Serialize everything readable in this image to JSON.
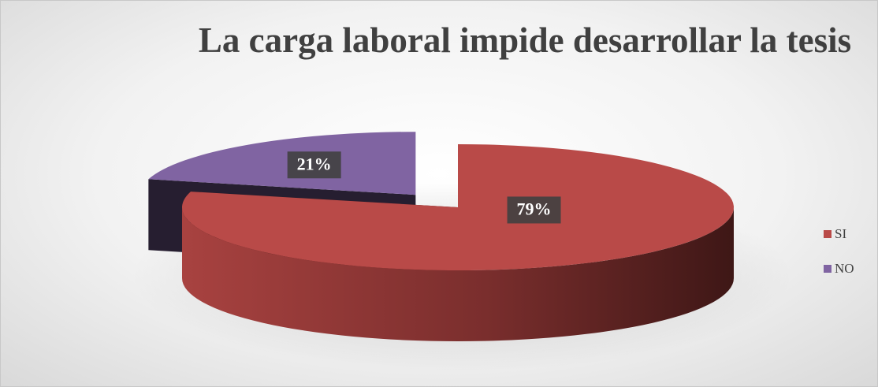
{
  "chart_data": {
    "type": "pie",
    "title": "La carga laboral impide desarrollar la tesis",
    "categories": [
      "SI",
      "NO"
    ],
    "values": [
      79,
      21
    ],
    "value_labels": [
      "79%",
      "21%"
    ],
    "colors": [
      "#b94a48",
      "#8064a2"
    ],
    "legend": "right"
  }
}
